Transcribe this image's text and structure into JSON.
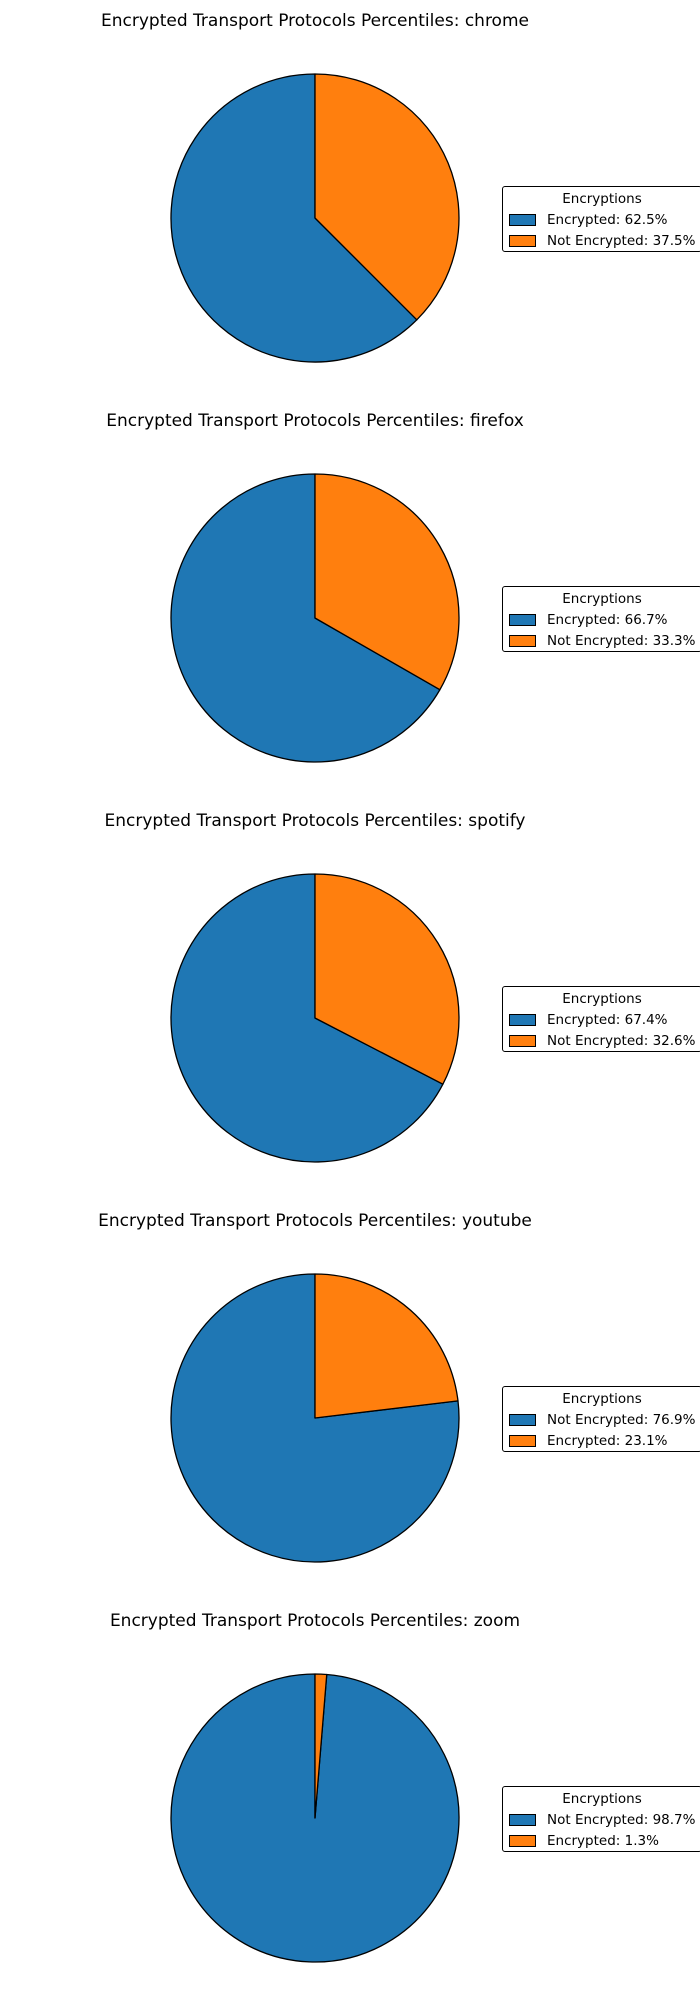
{
  "legend_title": "Encryptions",
  "colors": {
    "blue": "#1f77b4",
    "orange": "#ff7f0e"
  },
  "chart_data": [
    {
      "type": "pie",
      "title": "Encrypted Transport Protocols Percentiles: chrome",
      "legend_title": "Encryptions",
      "legend_position": "right",
      "slices": [
        {
          "label": "Encrypted: 62.5%",
          "name": "Encrypted",
          "value": 62.5,
          "color": "#1f77b4"
        },
        {
          "label": "Not Encrypted: 37.5%",
          "name": "Not Encrypted",
          "value": 37.5,
          "color": "#ff7f0e"
        }
      ]
    },
    {
      "type": "pie",
      "title": "Encrypted Transport Protocols Percentiles: firefox",
      "legend_title": "Encryptions",
      "legend_position": "right",
      "slices": [
        {
          "label": "Encrypted: 66.7%",
          "name": "Encrypted",
          "value": 66.7,
          "color": "#1f77b4"
        },
        {
          "label": "Not Encrypted: 33.3%",
          "name": "Not Encrypted",
          "value": 33.3,
          "color": "#ff7f0e"
        }
      ]
    },
    {
      "type": "pie",
      "title": "Encrypted Transport Protocols Percentiles: spotify",
      "legend_title": "Encryptions",
      "legend_position": "right",
      "slices": [
        {
          "label": "Encrypted: 67.4%",
          "name": "Encrypted",
          "value": 67.4,
          "color": "#1f77b4"
        },
        {
          "label": "Not Encrypted: 32.6%",
          "name": "Not Encrypted",
          "value": 32.6,
          "color": "#ff7f0e"
        }
      ]
    },
    {
      "type": "pie",
      "title": "Encrypted Transport Protocols Percentiles: youtube",
      "legend_title": "Encryptions",
      "legend_position": "right",
      "slices": [
        {
          "label": "Not Encrypted: 76.9%",
          "name": "Not Encrypted",
          "value": 76.9,
          "color": "#1f77b4"
        },
        {
          "label": "Encrypted: 23.1%",
          "name": "Encrypted",
          "value": 23.1,
          "color": "#ff7f0e"
        }
      ]
    },
    {
      "type": "pie",
      "title": "Encrypted Transport Protocols Percentiles: zoom",
      "legend_title": "Encryptions",
      "legend_position": "right",
      "slices": [
        {
          "label": "Not Encrypted: 98.7%",
          "name": "Not Encrypted",
          "value": 98.7,
          "color": "#1f77b4"
        },
        {
          "label": "Encrypted: 1.3%",
          "name": "Encrypted",
          "value": 1.3,
          "color": "#ff7f0e"
        }
      ]
    }
  ]
}
